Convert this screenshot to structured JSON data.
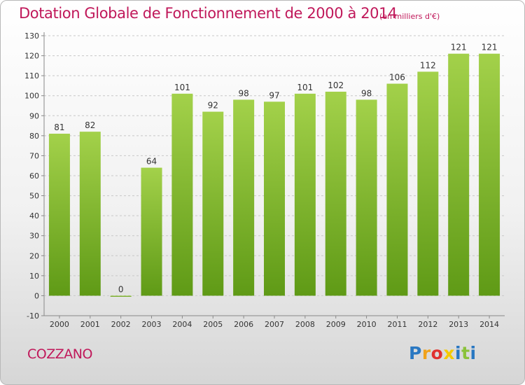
{
  "title": "Dotation Globale de Fonctionnement de 2000 à 2014",
  "unit_note": "(en milliers d'€)",
  "commune": "COZZANO",
  "logo": {
    "text": "Proxiti",
    "letters": [
      {
        "char": "P",
        "color": "#2a78c2"
      },
      {
        "char": "r",
        "color": "#f0a21b"
      },
      {
        "char": "o",
        "color": "#e0312f"
      },
      {
        "char": "x",
        "color": "#f5c900"
      },
      {
        "char": "i",
        "color": "#2a78c2"
      },
      {
        "char": "t",
        "color": "#8bc23a"
      },
      {
        "char": "i",
        "color": "#2a78c2"
      }
    ]
  },
  "colors": {
    "bar_light": "#a3d14a",
    "bar_dark": "#5f9a16",
    "grid": "#c8c8c8",
    "axis": "#888888",
    "text": "#333333",
    "accent": "#c0185a"
  },
  "chart_data": {
    "type": "bar",
    "title": "Dotation Globale de Fonctionnement de 2000 à 2014",
    "xlabel": "",
    "ylabel": "",
    "ylim": [
      -10,
      130
    ],
    "ytick_step": 10,
    "grid": true,
    "categories": [
      "2000",
      "2001",
      "2002",
      "2003",
      "2004",
      "2005",
      "2006",
      "2007",
      "2008",
      "2009",
      "2010",
      "2011",
      "2012",
      "2013",
      "2014"
    ],
    "values": [
      81,
      82,
      0,
      64,
      101,
      92,
      98,
      97,
      101,
      102,
      98,
      106,
      112,
      121,
      121
    ]
  }
}
